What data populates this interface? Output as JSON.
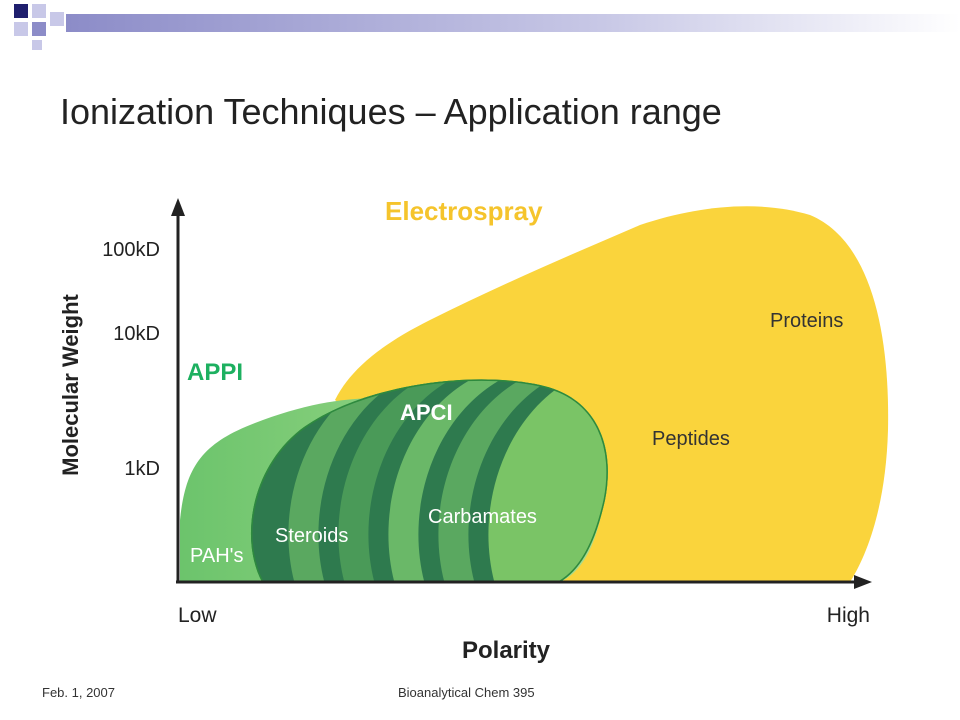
{
  "title": "Ionization Techniques – Application range",
  "diagram": {
    "y_axis": {
      "label": "Molecular Weight",
      "ticks": [
        "100kD",
        "10kD",
        "1kD"
      ]
    },
    "x_axis": {
      "label": "Polarity",
      "ticks": [
        "Low",
        "High"
      ]
    },
    "regions": [
      {
        "name": "Electrospray",
        "items": [
          "Proteins",
          "Peptides"
        ]
      },
      {
        "name": "APPI",
        "items": [
          "PAH's"
        ]
      },
      {
        "name": "APCI",
        "items": [
          "Steroids",
          "Carbamates"
        ]
      }
    ]
  },
  "footer": {
    "date": "Feb. 1, 2007",
    "course": "Bioanalytical Chem 395"
  }
}
